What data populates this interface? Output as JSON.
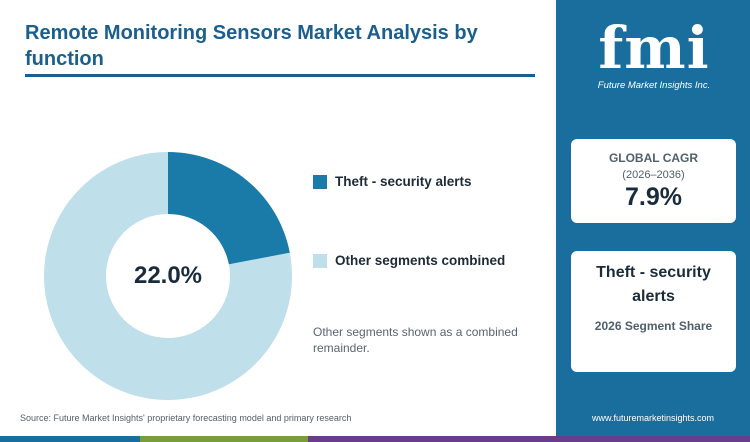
{
  "title": "Remote Monitoring Sensors Market Analysis by function",
  "chart_data": {
    "type": "pie",
    "donut": true,
    "center_label": "22.0%",
    "slices": [
      {
        "name": "Theft - security alerts",
        "value": 22.0,
        "color": "#1a7aa8"
      },
      {
        "name": "Other segments combined",
        "value": 78.0,
        "color": "#bfdfeb"
      }
    ],
    "legend_placement": "right"
  },
  "legend": [
    {
      "label": "Theft - security alerts",
      "color": "#1a7aa8"
    },
    {
      "label": "Other segments combined",
      "color": "#bfdfeb"
    }
  ],
  "note": "Other segments shown as a combined remainder.",
  "source": "Source: Future Market Insights' proprietary forecasting model and primary research",
  "logo": {
    "letters": "fmi",
    "tagline": "Future Market Insights Inc."
  },
  "cagr": {
    "label": "GLOBAL CAGR",
    "range": "(2026–2036)",
    "value": "7.9%"
  },
  "segment": {
    "name": "Theft - security alerts",
    "sub": "2026 Segment Share"
  },
  "website": "www.futuremarketinsights.com",
  "colors": {
    "sidebar": "#1a6e9e",
    "footer": [
      "#1a6e9e",
      "#7a9c3c",
      "#e8792b",
      "#6a3d8c"
    ]
  }
}
